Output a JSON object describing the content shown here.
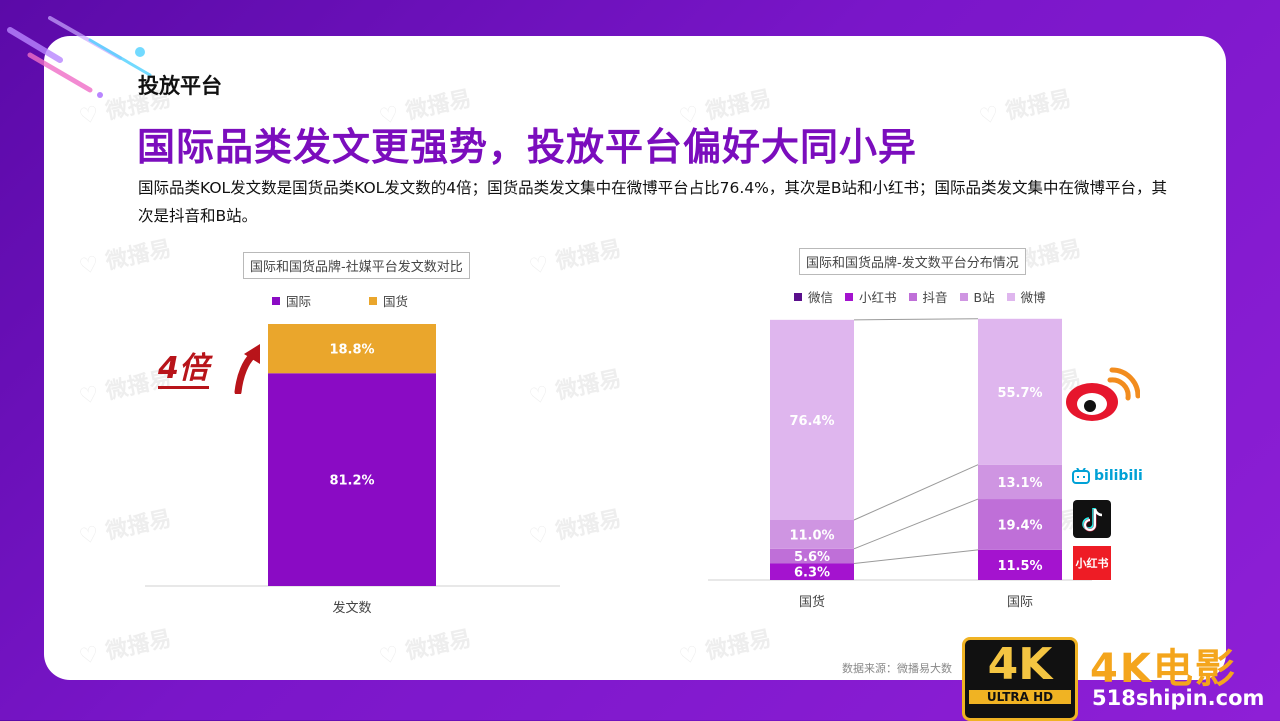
{
  "section_title": "投放平台",
  "headline": "国际品类发文更强势，投放平台偏好大同小异",
  "description": "国际品类KOL发文数是国货品类KOL发文数的4倍；国货品类发文集中在微博平台占比76.4%，其次是B站和小红书；国际品类发文集中在微博平台，其次是抖音和B站。",
  "left_chart_title": "国际和国货品牌-社媒平台发文数对比",
  "right_chart_title": "国际和国货品牌-发文数平台分布情况",
  "annotation": "4倍",
  "watermark_text": "微播易",
  "source_text": "数据来源：微播易大数",
  "badge": {
    "big": "4K",
    "small": "ULTRA HD",
    "title": "4K电影",
    "url": "518shipin.com"
  },
  "platform_logos": {
    "weibo": "weibo-logo",
    "bilibili": "bilibili-logo",
    "bilibili_text": "bilibili",
    "douyin": "douyin-logo",
    "xiaohongshu": "xiaohongshu-logo",
    "xiaohongshu_text": "小红书"
  },
  "colors": {
    "accent": "#7b0dbd",
    "gold": "#eaa62c",
    "annotation": "#b8141a"
  },
  "chart_data": [
    {
      "type": "bar",
      "stacked": true,
      "categories": [
        "发文数"
      ],
      "series": [
        {
          "name": "国际",
          "values": [
            81.2
          ],
          "color": "#8a0bc4",
          "labels": [
            "81.2%"
          ]
        },
        {
          "name": "国货",
          "values": [
            18.8
          ],
          "color": "#eaa62c",
          "labels": [
            "18.8%"
          ]
        }
      ],
      "ylim": [
        0,
        100
      ],
      "legend": "top"
    },
    {
      "type": "bar",
      "stacked": true,
      "categories": [
        "国货",
        "国际"
      ],
      "series": [
        {
          "name": "微信",
          "values": [
            0,
            0
          ],
          "color": "#5a0f8c",
          "labels": [
            "",
            ""
          ]
        },
        {
          "name": "小红书",
          "values": [
            6.3,
            11.5
          ],
          "color": "#a413cf",
          "labels": [
            "6.3%",
            "11.5%"
          ]
        },
        {
          "name": "抖音",
          "values": [
            5.6,
            19.4
          ],
          "color": "#bf6fd8",
          "labels": [
            "5.6%",
            "19.4%"
          ]
        },
        {
          "name": "B站",
          "values": [
            11.0,
            13.1
          ],
          "color": "#cf95e2",
          "labels": [
            "11.0%",
            "13.1%"
          ]
        },
        {
          "name": "微博",
          "values": [
            76.4,
            55.7
          ],
          "color": "#dfb6ee",
          "labels": [
            "76.4%",
            "55.7%"
          ]
        }
      ],
      "ylim": [
        0,
        100
      ],
      "legend": "top"
    }
  ]
}
